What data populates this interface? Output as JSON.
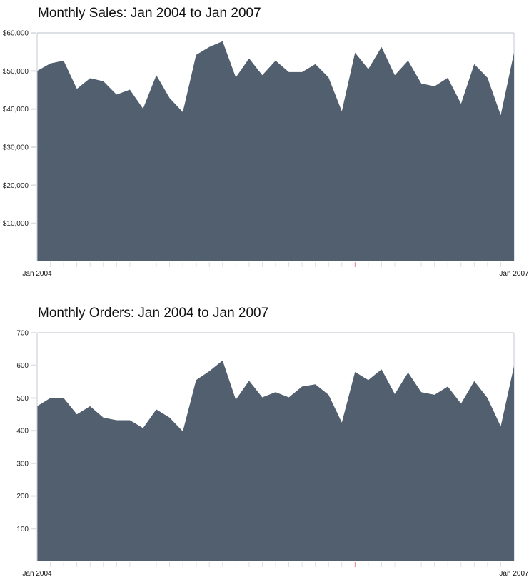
{
  "charts": [
    {
      "title": "Monthly Sales: Jan 2004 to Jan 2007",
      "y_tick_labels": [
        "$10,000",
        "$20,000",
        "$30,000",
        "$40,000",
        "$50,000",
        "$60,000"
      ],
      "x_start_label": "Jan 2004",
      "x_end_label": "Jan 2007"
    },
    {
      "title": "Monthly Orders: Jan 2004 to Jan 2007",
      "y_tick_labels": [
        "100",
        "200",
        "300",
        "400",
        "500",
        "600",
        "700"
      ],
      "x_start_label": "Jan 2004",
      "x_end_label": "Jan 2007"
    }
  ],
  "colors": {
    "area_fill": "#515f6f",
    "grid_tick": "#dde0e4",
    "axis_line": "#c3c8d0",
    "year_tick": "#e8808a"
  },
  "chart_data": [
    {
      "type": "area",
      "title": "Monthly Sales: Jan 2004 to Jan 2007",
      "xlabel": "",
      "ylabel": "",
      "ylim": [
        0,
        60000
      ],
      "yticks": [
        10000,
        20000,
        30000,
        40000,
        50000,
        60000
      ],
      "ytick_labels": [
        "$10,000",
        "$20,000",
        "$30,000",
        "$40,000",
        "$50,000",
        "$60,000"
      ],
      "x_labels_shown": [
        "Jan 2004",
        "Jan 2007"
      ],
      "x": [
        "Jan 2004",
        "Feb 2004",
        "Mar 2004",
        "Apr 2004",
        "May 2004",
        "Jun 2004",
        "Jul 2004",
        "Aug 2004",
        "Sep 2004",
        "Oct 2004",
        "Nov 2004",
        "Dec 2004",
        "Jan 2005",
        "Feb 2005",
        "Mar 2005",
        "Apr 2005",
        "May 2005",
        "Jun 2005",
        "Jul 2005",
        "Aug 2005",
        "Sep 2005",
        "Oct 2005",
        "Nov 2005",
        "Dec 2005",
        "Jan 2006",
        "Feb 2006",
        "Mar 2006",
        "Apr 2006",
        "May 2006",
        "Jun 2006",
        "Jul 2006",
        "Aug 2006",
        "Sep 2006",
        "Oct 2006",
        "Nov 2006",
        "Dec 2006",
        "Jan 2007"
      ],
      "values": [
        50000,
        52000,
        52700,
        45300,
        48100,
        47300,
        43800,
        45100,
        40100,
        48900,
        42900,
        39200,
        54200,
        56300,
        57800,
        48300,
        53300,
        48900,
        52700,
        49700,
        49700,
        51800,
        48300,
        39400,
        54800,
        50500,
        56300,
        48900,
        52700,
        46700,
        46000,
        48200,
        41400,
        51800,
        48200,
        38400,
        54800
      ],
      "grid": false,
      "legend": "none"
    },
    {
      "type": "area",
      "title": "Monthly Orders: Jan 2004 to Jan 2007",
      "xlabel": "",
      "ylabel": "",
      "ylim": [
        0,
        700
      ],
      "yticks": [
        100,
        200,
        300,
        400,
        500,
        600,
        700
      ],
      "ytick_labels": [
        "100",
        "200",
        "300",
        "400",
        "500",
        "600",
        "700"
      ],
      "x_labels_shown": [
        "Jan 2004",
        "Jan 2007"
      ],
      "x": [
        "Jan 2004",
        "Feb 2004",
        "Mar 2004",
        "Apr 2004",
        "May 2004",
        "Jun 2004",
        "Jul 2004",
        "Aug 2004",
        "Sep 2004",
        "Oct 2004",
        "Nov 2004",
        "Dec 2004",
        "Jan 2005",
        "Feb 2005",
        "Mar 2005",
        "Apr 2005",
        "May 2005",
        "Jun 2005",
        "Jul 2005",
        "Aug 2005",
        "Sep 2005",
        "Oct 2005",
        "Nov 2005",
        "Dec 2005",
        "Jan 2006",
        "Feb 2006",
        "Mar 2006",
        "Apr 2006",
        "May 2006",
        "Jun 2006",
        "Jul 2006",
        "Aug 2006",
        "Sep 2006",
        "Oct 2006",
        "Nov 2006",
        "Dec 2006",
        "Jan 2007"
      ],
      "values": [
        475,
        500,
        500,
        450,
        475,
        440,
        432,
        432,
        408,
        465,
        440,
        398,
        555,
        582,
        615,
        495,
        553,
        502,
        518,
        502,
        535,
        542,
        510,
        425,
        580,
        555,
        588,
        512,
        578,
        518,
        510,
        535,
        483,
        552,
        500,
        413,
        598
      ],
      "grid": false,
      "legend": "none"
    }
  ]
}
